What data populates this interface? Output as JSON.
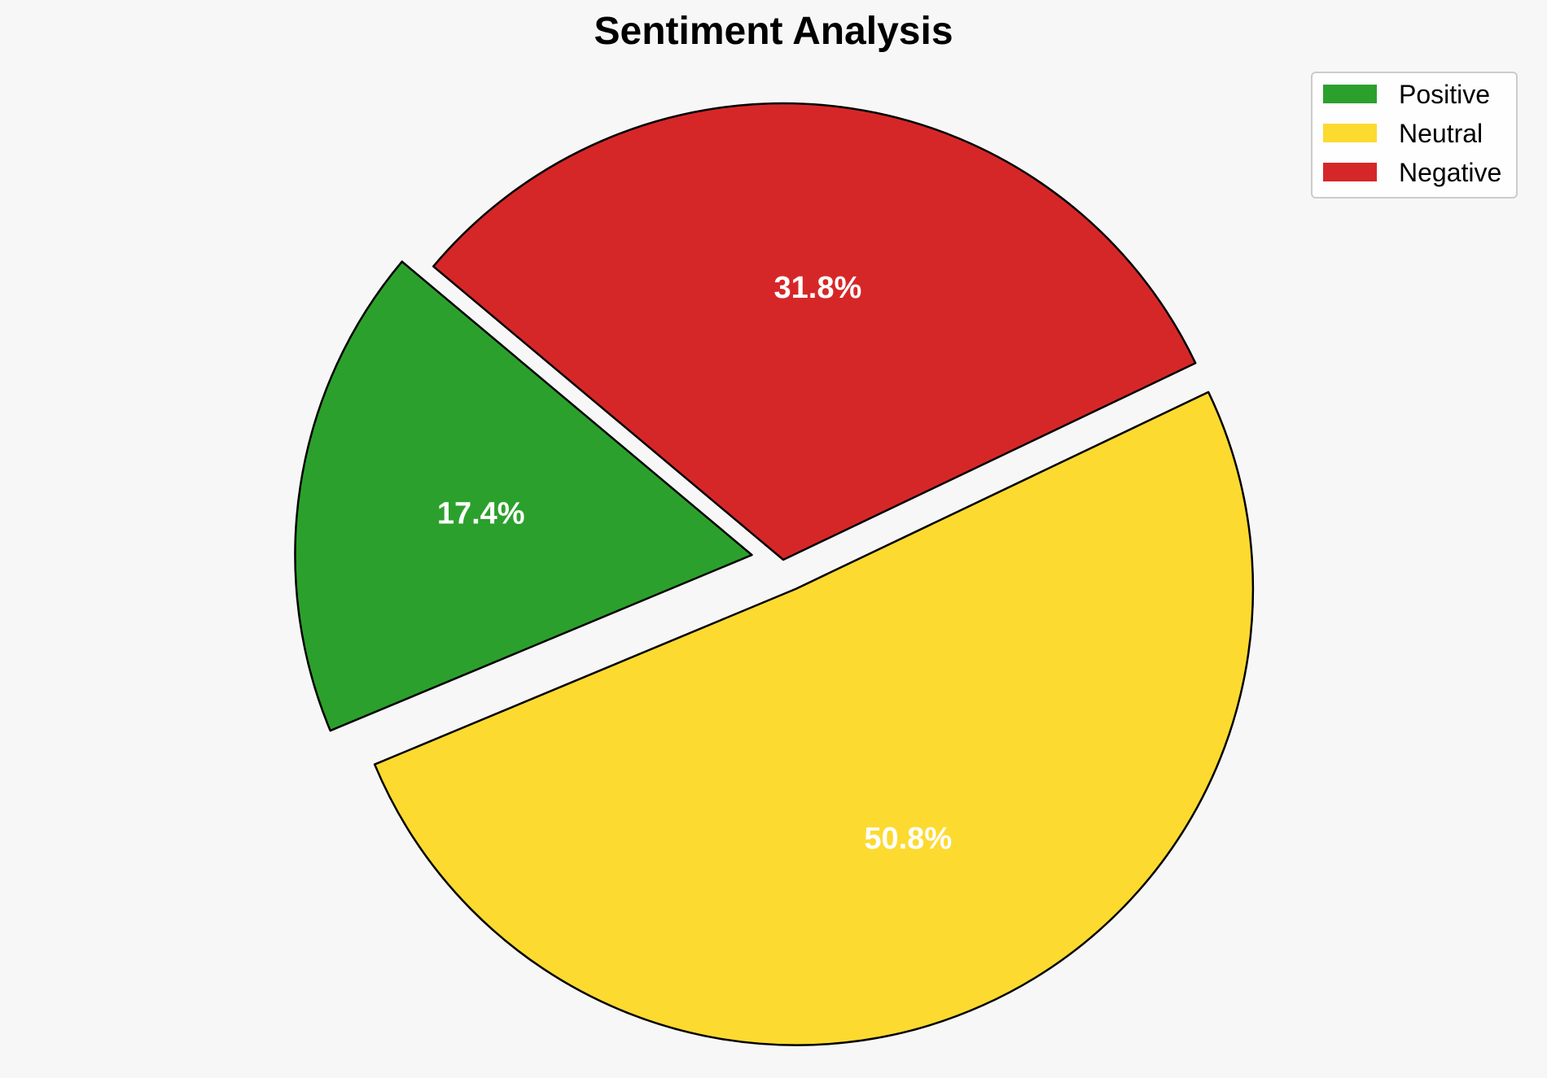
{
  "chart_data": {
    "type": "pie",
    "title": "Sentiment Analysis",
    "slices": [
      {
        "label": "Positive",
        "value": 17.4,
        "display": "17.4%",
        "color": "#2ca02c",
        "exploded": true
      },
      {
        "label": "Neutral",
        "value": 50.8,
        "display": "50.8%",
        "color": "#fdda30",
        "exploded": true
      },
      {
        "label": "Negative",
        "value": 31.8,
        "display": "31.8%",
        "color": "#d62728",
        "exploded": false
      }
    ],
    "start_angle_deg": 140,
    "direction": "counterclockwise",
    "legend_position": "top-right",
    "label_color": "#ffffff",
    "edge_color": "#000000",
    "background": "#f7f7f7"
  }
}
